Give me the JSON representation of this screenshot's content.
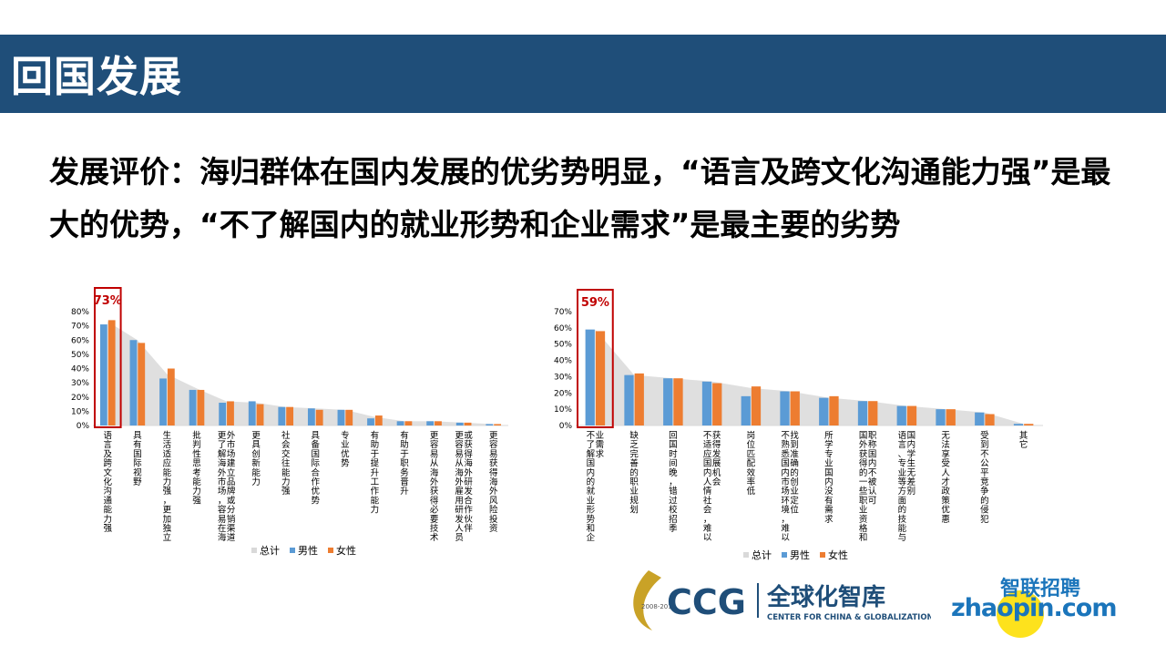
{
  "header": {
    "title": "回国发展"
  },
  "headline": "发展评价：海归群体在国内发展的优劣势明显，“语言及跨文化沟通能力强”是最大的优势，“不了解国内的就业形势和企业需求”是最主要的劣势",
  "colors": {
    "header_bg": "#1f4e79",
    "male": "#5b9bd5",
    "female": "#ed7d31",
    "total": "#d9d9d9",
    "highlight": "#c00000"
  },
  "legend": {
    "total": "总计",
    "male": "男性",
    "female": "女性"
  },
  "chart_data": [
    {
      "type": "bar",
      "callout": "73%",
      "yticks": [
        "0%",
        "10%",
        "20%",
        "30%",
        "40%",
        "50%",
        "60%",
        "70%",
        "80%"
      ],
      "ylim": [
        0,
        80
      ],
      "categories": [
        "语言及跨文化沟通能力强",
        "具有国际视野",
        "生活适应能力强，更加独立",
        "批判性思考能力强",
        "更了解海外市场，容易在海外市场建立品牌或分销渠道",
        "更具创新能力",
        "社会交往能力强",
        "具备国际合作优势",
        "专业优势",
        "有助于提升工作能力",
        "有助于职务晋升",
        "更容易从海外获得必要技术",
        "更容易从海外雇用研发人员或获得海外研发合作伙伴",
        "更容易获得海外风险投资"
      ],
      "series": [
        {
          "name": "总计",
          "values": [
            73,
            60,
            36,
            26,
            17,
            16,
            13,
            12,
            11,
            6,
            3,
            3,
            2,
            1
          ]
        },
        {
          "name": "男性",
          "values": [
            71,
            60,
            33,
            25,
            16,
            17,
            13,
            12,
            11,
            5,
            3,
            3,
            2,
            1
          ]
        },
        {
          "name": "女性",
          "values": [
            74,
            58,
            40,
            25,
            17,
            15,
            13,
            11,
            11,
            7,
            3,
            3,
            2,
            1
          ]
        }
      ],
      "legend_position": "bottom"
    },
    {
      "type": "bar",
      "callout": "59%",
      "yticks": [
        "0%",
        "10%",
        "20%",
        "30%",
        "40%",
        "50%",
        "60%",
        "70%"
      ],
      "ylim": [
        0,
        70
      ],
      "categories": [
        "不了解国内的就业形势和企业需求",
        "缺乏完善的职业规划",
        "回国时间晚，错过校招季",
        "不适应国内人情社会，难以获得发展机会",
        "岗位匹配效率低",
        "不熟悉国内市场环境，难以找到准确的创业定位",
        "所学专业国内没有需求",
        "国外获得的一些职业资格和职称国内不被认可",
        "语言、专业等方面的技能与国内学生无差别",
        "无法享受人才政策优惠",
        "受到不公平竞争的侵犯",
        "其它"
      ],
      "series": [
        {
          "name": "总计",
          "values": [
            59,
            31,
            29,
            27,
            23,
            21,
            17,
            15,
            12,
            10,
            8,
            1
          ]
        },
        {
          "name": "男性",
          "values": [
            59,
            31,
            29,
            27,
            18,
            21,
            17,
            15,
            12,
            10,
            8,
            1
          ]
        },
        {
          "name": "女性",
          "values": [
            58,
            32,
            29,
            26,
            24,
            21,
            18,
            15,
            12,
            10,
            7,
            1
          ]
        }
      ],
      "legend_position": "bottom"
    }
  ],
  "logos": {
    "ccg_text": "CCG",
    "ccg_cn": "全球化智库",
    "ccg_en": "CENTER FOR CHINA & GLOBALIZATION",
    "ccg_years": "2008-2018",
    "zhaopin_cn": "智联招聘",
    "zhaopin_en": "zhaopin.com"
  }
}
